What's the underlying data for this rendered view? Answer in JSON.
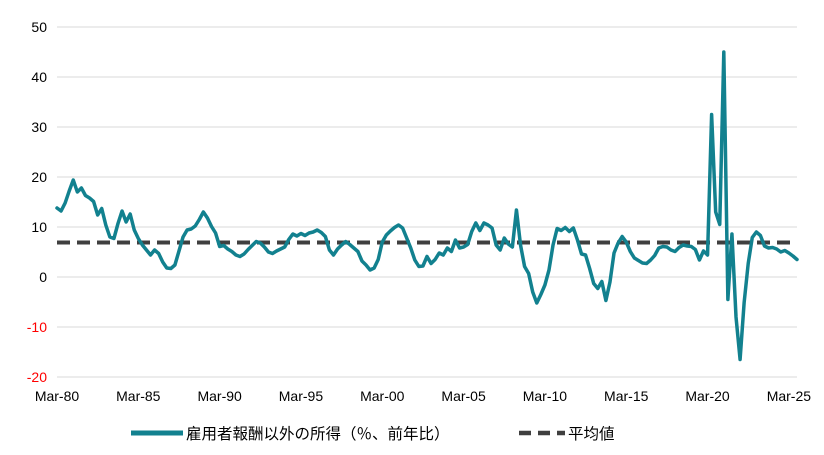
{
  "chart_data": {
    "type": "line",
    "title": "",
    "frequency": "quarterly",
    "x_start_label": "Mar-80",
    "x_tick_labels": [
      "Mar-80",
      "Mar-85",
      "Mar-90",
      "Mar-95",
      "Mar-00",
      "Mar-05",
      "Mar-10",
      "Mar-15",
      "Mar-20",
      "Mar-25"
    ],
    "x_tick_interval": 20,
    "y_ticks": [
      50,
      40,
      30,
      20,
      10,
      0,
      -10,
      -20
    ],
    "ylim": [
      -20,
      50
    ],
    "grid": "horizontal",
    "gridline_color": "#d9d9d9",
    "negative_tick_color": "#ff0000",
    "legend_position": "bottom",
    "series": [
      {
        "name": "雇用者報酬以外の所得（％、前年比）",
        "color": "#12818f",
        "values": [
          13.8,
          13.2,
          14.8,
          17.2,
          19.4,
          17.0,
          17.8,
          16.3,
          15.8,
          15.1,
          12.4,
          13.7,
          10.4,
          8.0,
          7.7,
          10.7,
          13.2,
          11.0,
          12.6,
          9.4,
          7.7,
          6.4,
          5.4,
          4.4,
          5.4,
          4.7,
          3.0,
          1.8,
          1.7,
          2.4,
          5.2,
          8.0,
          9.4,
          9.6,
          10.2,
          11.5,
          13.0,
          11.8,
          10.1,
          8.8,
          6.1,
          6.3,
          5.6,
          5.1,
          4.4,
          4.1,
          4.6,
          5.5,
          6.3,
          7.1,
          6.8,
          6.0,
          5.0,
          4.7,
          5.2,
          5.6,
          6.0,
          7.5,
          8.6,
          8.2,
          8.7,
          8.3,
          8.8,
          9.0,
          9.4,
          8.9,
          8.1,
          5.4,
          4.4,
          5.6,
          6.4,
          7.1,
          6.5,
          5.8,
          5.1,
          3.2,
          2.4,
          1.4,
          1.8,
          3.5,
          7.0,
          8.4,
          9.2,
          9.9,
          10.4,
          9.8,
          7.8,
          5.8,
          3.4,
          2.1,
          2.2,
          4.1,
          2.7,
          3.5,
          4.8,
          4.4,
          5.8,
          5.1,
          7.4,
          5.8,
          6.0,
          6.5,
          9.1,
          10.8,
          9.3,
          10.8,
          10.4,
          9.8,
          6.4,
          5.4,
          7.8,
          6.6,
          6.0,
          13.4,
          6.4,
          2.1,
          0.7,
          -3.0,
          -5.2,
          -3.5,
          -1.6,
          1.4,
          6.4,
          9.7,
          9.3,
          9.9,
          9.1,
          9.8,
          7.4,
          4.6,
          4.4,
          1.7,
          -1.3,
          -2.3,
          -0.9,
          -4.7,
          -1.0,
          4.8,
          6.8,
          8.1,
          7.0,
          5.1,
          3.8,
          3.3,
          2.8,
          2.7,
          3.4,
          4.3,
          5.8,
          6.1,
          6.0,
          5.4,
          5.1,
          5.9,
          6.4,
          6.2,
          6.1,
          5.5,
          3.4,
          5.2,
          4.4,
          32.5,
          13.0,
          10.5,
          45.0,
          -4.5,
          8.6,
          -8.0,
          -16.5,
          -5.1,
          2.7,
          7.9,
          9.0,
          8.3,
          6.2,
          5.8,
          5.9,
          5.6,
          5.0,
          5.3,
          4.8,
          4.2,
          3.5
        ]
      }
    ],
    "average_line": {
      "label": "平均値",
      "value": 6.9,
      "color": "#3f3f3f",
      "style": "dashed"
    }
  },
  "legend": {
    "series_label": "雇用者報酬以外の所得（％、前年比）",
    "average_label": "平均値"
  }
}
